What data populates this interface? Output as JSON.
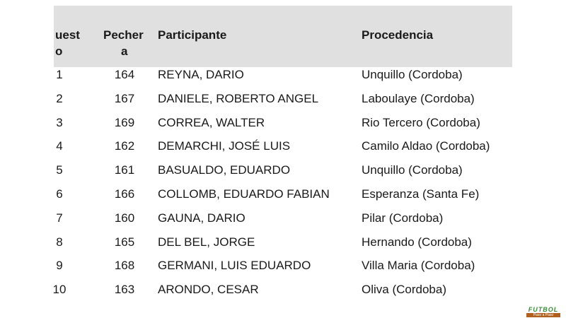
{
  "table": {
    "headers": {
      "position": [
        "uest",
        "o"
      ],
      "bib": [
        "Pecher",
        "a"
      ],
      "participant": "Participante",
      "origin": "Procedencia"
    },
    "rows": [
      {
        "position": "1",
        "bib": "164",
        "participant": "REYNA, DARIO",
        "origin": "Unquillo (Cordoba)"
      },
      {
        "position": "2",
        "bib": "167",
        "participant": "DANIELE, ROBERTO ANGEL",
        "origin": "Laboulaye (Cordoba)"
      },
      {
        "position": "3",
        "bib": "169",
        "participant": "CORREA, WALTER",
        "origin": "Rio Tercero (Cordoba)"
      },
      {
        "position": "4",
        "bib": "162",
        "participant": "DEMARCHI, JOSÉ LUIS",
        "origin": "Camilo Aldao (Cordoba)"
      },
      {
        "position": "5",
        "bib": "161",
        "participant": "BASUALDO, EDUARDO",
        "origin": "Unquillo (Cordoba)"
      },
      {
        "position": "6",
        "bib": "166",
        "participant": "COLLOMB, EDUARDO FABIAN",
        "origin": "Esperanza (Santa Fe)"
      },
      {
        "position": "7",
        "bib": "160",
        "participant": "GAUNA, DARIO",
        "origin": "Pilar (Cordoba)"
      },
      {
        "position": "8",
        "bib": "165",
        "participant": "DEL BEL, JORGE",
        "origin": "Hernando (Cordoba)"
      },
      {
        "position": "9",
        "bib": "168",
        "participant": "GERMANI, LUIS EDUARDO",
        "origin": "Villa Maria (Cordoba)"
      },
      {
        "position": "10",
        "bib": "163",
        "participant": "ARONDO, CESAR",
        "origin": "Oliva (Cordoba)"
      }
    ]
  },
  "logo": {
    "title": "FUTBOL",
    "subtitle": "Paso a Paso"
  },
  "colors": {
    "header_bg": "#e0e0e0",
    "text": "#1a1a1a"
  }
}
